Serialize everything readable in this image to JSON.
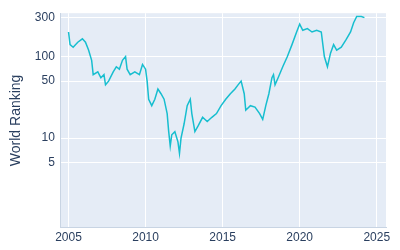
{
  "chart_data": {
    "type": "line",
    "y_label": "World Ranking",
    "log": "y",
    "grid": true,
    "color": "#17becf",
    "x": [
      2005.0,
      2005.1,
      2005.3,
      2005.6,
      2005.9,
      2006.1,
      2006.3,
      2006.5,
      2006.6,
      2006.9,
      2007.1,
      2007.3,
      2007.4,
      2007.6,
      2007.9,
      2008.1,
      2008.3,
      2008.5,
      2008.7,
      2008.8,
      2009.0,
      2009.3,
      2009.6,
      2009.8,
      2010.0,
      2010.1,
      2010.2,
      2010.4,
      2010.6,
      2010.8,
      2011.0,
      2011.2,
      2011.4,
      2011.5,
      2011.6,
      2011.7,
      2011.9,
      2012.1,
      2012.2,
      2012.3,
      2012.5,
      2012.7,
      2012.9,
      2013.0,
      2013.2,
      2013.4,
      2013.7,
      2014.0,
      2014.3,
      2014.6,
      2014.9,
      2015.2,
      2015.5,
      2015.8,
      2016.0,
      2016.2,
      2016.4,
      2016.5,
      2016.8,
      2017.1,
      2017.4,
      2017.6,
      2017.8,
      2018.0,
      2018.2,
      2018.3,
      2018.4,
      2018.6,
      2018.9,
      2019.2,
      2019.5,
      2019.8,
      2020.0,
      2020.2,
      2020.5,
      2020.8,
      2021.1,
      2021.4,
      2021.6,
      2021.8,
      2022.0,
      2022.2,
      2022.4,
      2022.7,
      2023.0,
      2023.3,
      2023.5,
      2023.7,
      2024.0,
      2024.2
    ],
    "values": [
      200,
      140,
      130,
      150,
      165,
      150,
      120,
      90,
      60,
      65,
      55,
      60,
      45,
      50,
      65,
      75,
      70,
      90,
      100,
      70,
      60,
      65,
      60,
      80,
      70,
      50,
      30,
      25,
      30,
      40,
      35,
      30,
      20,
      12,
      8,
      11,
      12,
      9,
      6.5,
      10,
      15,
      25,
      30,
      20,
      12,
      14,
      18,
      16,
      18,
      20,
      25,
      30,
      35,
      40,
      45,
      50,
      35,
      22,
      25,
      24,
      20,
      17,
      25,
      35,
      55,
      60,
      45,
      55,
      75,
      100,
      140,
      200,
      250,
      210,
      220,
      200,
      210,
      200,
      100,
      75,
      110,
      140,
      120,
      130,
      160,
      200,
      260,
      310,
      310,
      300
    ],
    "xlim": [
      2004.5,
      2025.6
    ],
    "xticks": [
      2005,
      2010,
      2015,
      2020,
      2025
    ],
    "ylim": [
      0.8,
      340
    ],
    "yticks": [
      5,
      10,
      50,
      100,
      300
    ]
  }
}
